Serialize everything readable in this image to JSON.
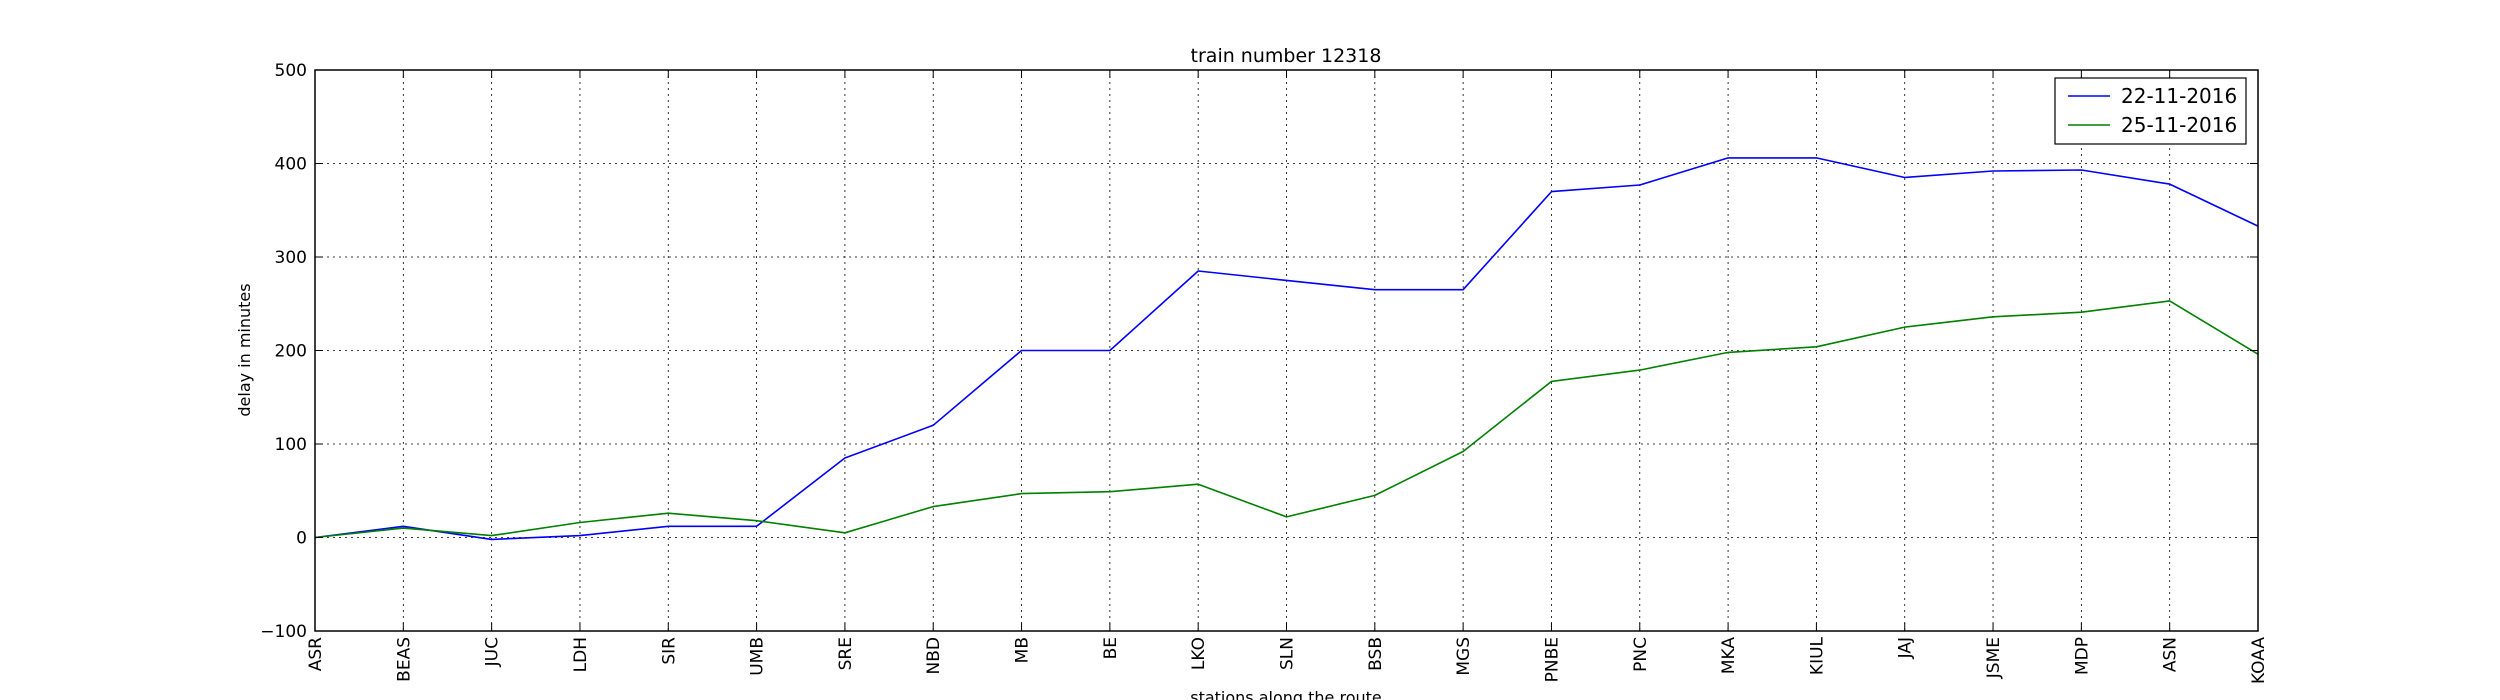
{
  "chart_data": {
    "type": "line",
    "title": "train number 12318",
    "xlabel": "stations along the route",
    "ylabel": "delay in minutes",
    "categories": [
      "ASR",
      "BEAS",
      "JUC",
      "LDH",
      "SIR",
      "UMB",
      "SRE",
      "NBD",
      "MB",
      "BE",
      "LKO",
      "SLN",
      "BSB",
      "MGS",
      "PNBE",
      "PNC",
      "MKA",
      "KIUL",
      "JAJ",
      "JSME",
      "MDP",
      "ASN",
      "KOAA"
    ],
    "yticks": [
      "500",
      "400",
      "300",
      "200",
      "100",
      "0",
      "−100"
    ],
    "ylim": [
      -100,
      500
    ],
    "grid": true,
    "legend": "top-right",
    "series": [
      {
        "name": "22-11-2016",
        "color": "#0000ff",
        "values": [
          0,
          12,
          -2,
          2,
          12,
          12,
          85,
          120,
          200,
          200,
          285,
          275,
          265,
          265,
          370,
          377,
          406,
          406,
          385,
          392,
          393,
          378,
          333
        ]
      },
      {
        "name": "25-11-2016",
        "color": "#008000",
        "values": [
          0,
          10,
          2,
          16,
          26,
          18,
          5,
          33,
          47,
          49,
          57,
          22,
          45,
          92,
          167,
          179,
          198,
          204,
          225,
          236,
          241,
          253,
          196
        ]
      }
    ]
  }
}
